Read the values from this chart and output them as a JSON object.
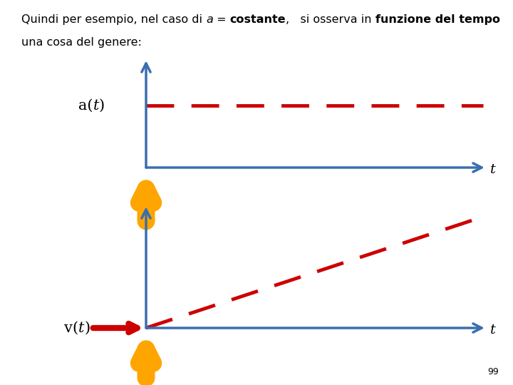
{
  "title_parts": [
    {
      "text": "Quindi per esempio, nel caso di ",
      "bold": false,
      "italic": false
    },
    {
      "text": "a",
      "bold": false,
      "italic": true
    },
    {
      "text": " = ",
      "bold": false,
      "italic": false
    },
    {
      "text": "costante",
      "bold": true,
      "italic": false
    },
    {
      "text": ",   si osserva in ",
      "bold": false,
      "italic": false
    },
    {
      "text": "funzione del tempo",
      "bold": true,
      "italic": false
    }
  ],
  "subtitle": "una cosa del genere:",
  "page_number": "99",
  "background_color": "#ffffff",
  "axis_color": "#3B6EAF",
  "dashed_color": "#CC0000",
  "arrow_yellow": "#FFA500",
  "arrow_red": "#CC0000",
  "text_color": "#000000",
  "title_fontsize": 11.5,
  "label_fontsize": 15,
  "t_label_fontsize": 14
}
